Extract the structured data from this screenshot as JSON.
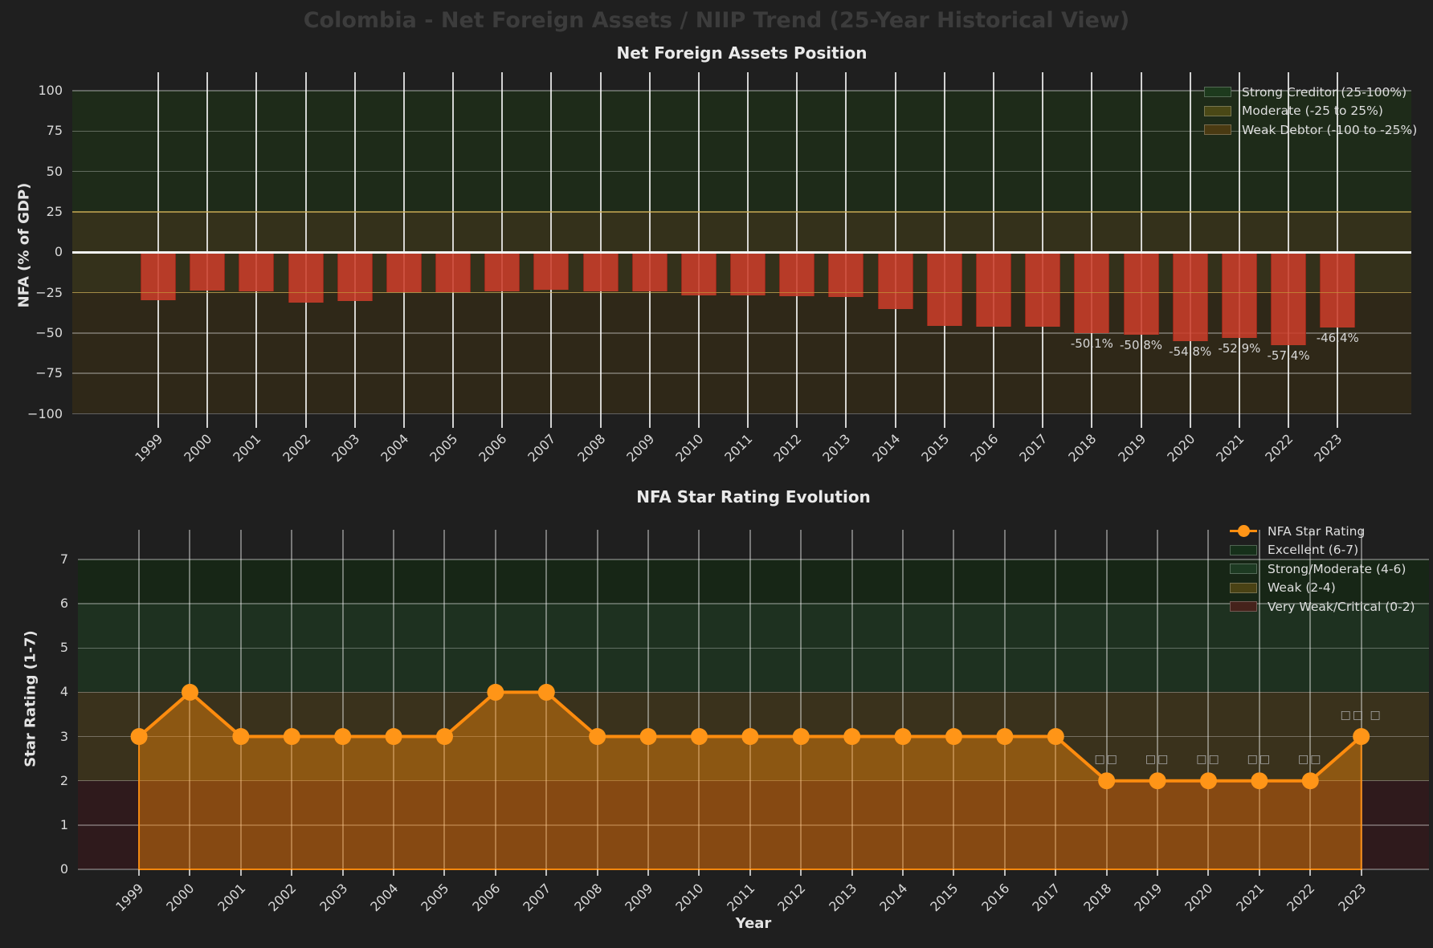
{
  "page": {
    "title": "Colombia - Net Foreign Assets / NIIP Trend (25-Year Historical View)"
  },
  "chart_data": [
    {
      "type": "bar",
      "title": "Net Foreign Assets Position",
      "ylabel": "NFA (% of GDP)",
      "xlabel": "",
      "ylim": [
        -100,
        111.5
      ],
      "grid": true,
      "legend_position": "upper right",
      "bar_color": "#cb3d2a",
      "zero_line_color": "#f2f2f2",
      "categories": [
        "1999",
        "2000",
        "2001",
        "2002",
        "2003",
        "2004",
        "2005",
        "2006",
        "2007",
        "2008",
        "2009",
        "2010",
        "2011",
        "2012",
        "2013",
        "2014",
        "2015",
        "2016",
        "2017",
        "2018",
        "2019",
        "2020",
        "2021",
        "2022",
        "2023"
      ],
      "values": [
        -29.5,
        -23.5,
        -24,
        -31,
        -30,
        -24.5,
        -24.5,
        -24,
        -23,
        -24,
        -24,
        -26.5,
        -26.5,
        -27,
        -27.5,
        -35,
        -45.5,
        -46,
        -46,
        -50.1,
        -50.8,
        -54.8,
        -52.9,
        -57.4,
        -46.4
      ],
      "bar_labels": [
        null,
        null,
        null,
        null,
        null,
        null,
        null,
        null,
        null,
        null,
        null,
        null,
        null,
        null,
        null,
        null,
        null,
        null,
        null,
        "-50.1%",
        "-50.8%",
        "-54.8%",
        "-52.9%",
        "-57.4%",
        "-46.4%"
      ],
      "yticks": [
        {
          "v": 100,
          "label": "100"
        },
        {
          "v": 75,
          "label": "75"
        },
        {
          "v": 50,
          "label": "50"
        },
        {
          "v": 25,
          "label": "25"
        },
        {
          "v": 0,
          "label": "0"
        },
        {
          "v": -25,
          "label": "−25"
        },
        {
          "v": -50,
          "label": "−50"
        },
        {
          "v": -75,
          "label": "−75"
        },
        {
          "v": -100,
          "label": "−100"
        }
      ],
      "bands": [
        {
          "label": "Strong Creditor (25-100%)",
          "from": 25,
          "to": 100,
          "color": "#1e2b19",
          "swatch": "#1d3a1d"
        },
        {
          "label": "Moderate (-25 to 25%)",
          "from": -25,
          "to": 25,
          "color": "#34311b",
          "swatch": "#4a4816"
        },
        {
          "label": "Weak Debtor (-100 to -25%)",
          "from": -100,
          "to": -25,
          "color": "#2f2818",
          "swatch": "#4a3a12"
        }
      ]
    },
    {
      "type": "line",
      "title": "NFA Star Rating Evolution",
      "ylabel": "Star Rating (1-7)",
      "xlabel": "Year",
      "ylim": [
        0,
        7.67
      ],
      "grid": true,
      "legend_position": "upper right",
      "series_label": "NFA Star Rating",
      "line_color": "#ff8c0e",
      "marker_color": "#ff9517",
      "fill_color": "rgba(255,138,5,0.42)",
      "fill_edge_color": "rgba(255,138,5,0.9)",
      "categories": [
        "1999",
        "2000",
        "2001",
        "2002",
        "2003",
        "2004",
        "2005",
        "2006",
        "2007",
        "2008",
        "2009",
        "2010",
        "2011",
        "2012",
        "2013",
        "2014",
        "2015",
        "2016",
        "2017",
        "2018",
        "2019",
        "2020",
        "2021",
        "2022",
        "2023"
      ],
      "values": [
        3,
        4,
        3,
        3,
        3,
        3,
        3,
        4,
        4,
        3,
        3,
        3,
        3,
        3,
        3,
        3,
        3,
        3,
        3,
        2,
        2,
        2,
        2,
        2,
        3
      ],
      "yticks": [
        {
          "v": 0,
          "label": "0"
        },
        {
          "v": 1,
          "label": "1"
        },
        {
          "v": 2,
          "label": "2"
        },
        {
          "v": 3,
          "label": "3"
        },
        {
          "v": 4,
          "label": "4"
        },
        {
          "v": 5,
          "label": "5"
        },
        {
          "v": 6,
          "label": "6"
        },
        {
          "v": 7,
          "label": "7"
        }
      ],
      "bands": [
        {
          "label": "Excellent (6-7)",
          "from": 6,
          "to": 7,
          "color": "#172616",
          "swatch": "#16301a"
        },
        {
          "label": "Strong/Moderate (4-6)",
          "from": 4,
          "to": 6,
          "color": "#1e3120",
          "swatch": "#1d3a22"
        },
        {
          "label": "Weak (2-4)",
          "from": 2,
          "to": 4,
          "color": "#3a321c",
          "swatch": "#4a4214"
        },
        {
          "label": "Very Weak/Critical (0-2)",
          "from": 0,
          "to": 2,
          "color": "#2f1a1c",
          "swatch": "#45221b"
        }
      ],
      "annotations": [
        {
          "year": "2018",
          "text": "□□"
        },
        {
          "year": "2019",
          "text": "□□"
        },
        {
          "year": "2020",
          "text": "□□"
        },
        {
          "year": "2021",
          "text": "□□"
        },
        {
          "year": "2022",
          "text": "□□"
        },
        {
          "year": "2023",
          "text": "□□ □"
        }
      ]
    }
  ]
}
